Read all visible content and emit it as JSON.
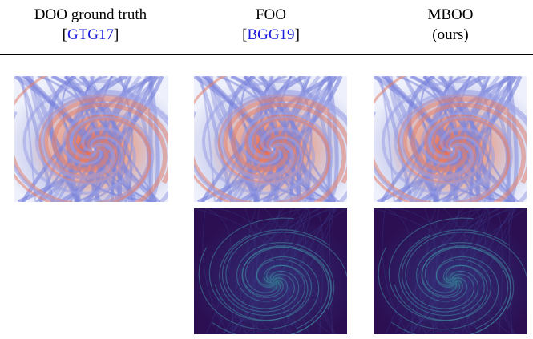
{
  "columns": [
    {
      "title": "DOO ground truth",
      "subtitle": [
        "[",
        "GTG17",
        "]"
      ]
    },
    {
      "title": "FOO",
      "subtitle": [
        "[",
        "BGG19",
        "]"
      ]
    },
    {
      "title": "MBOO",
      "subtitle": [
        "(ours)"
      ]
    }
  ]
}
